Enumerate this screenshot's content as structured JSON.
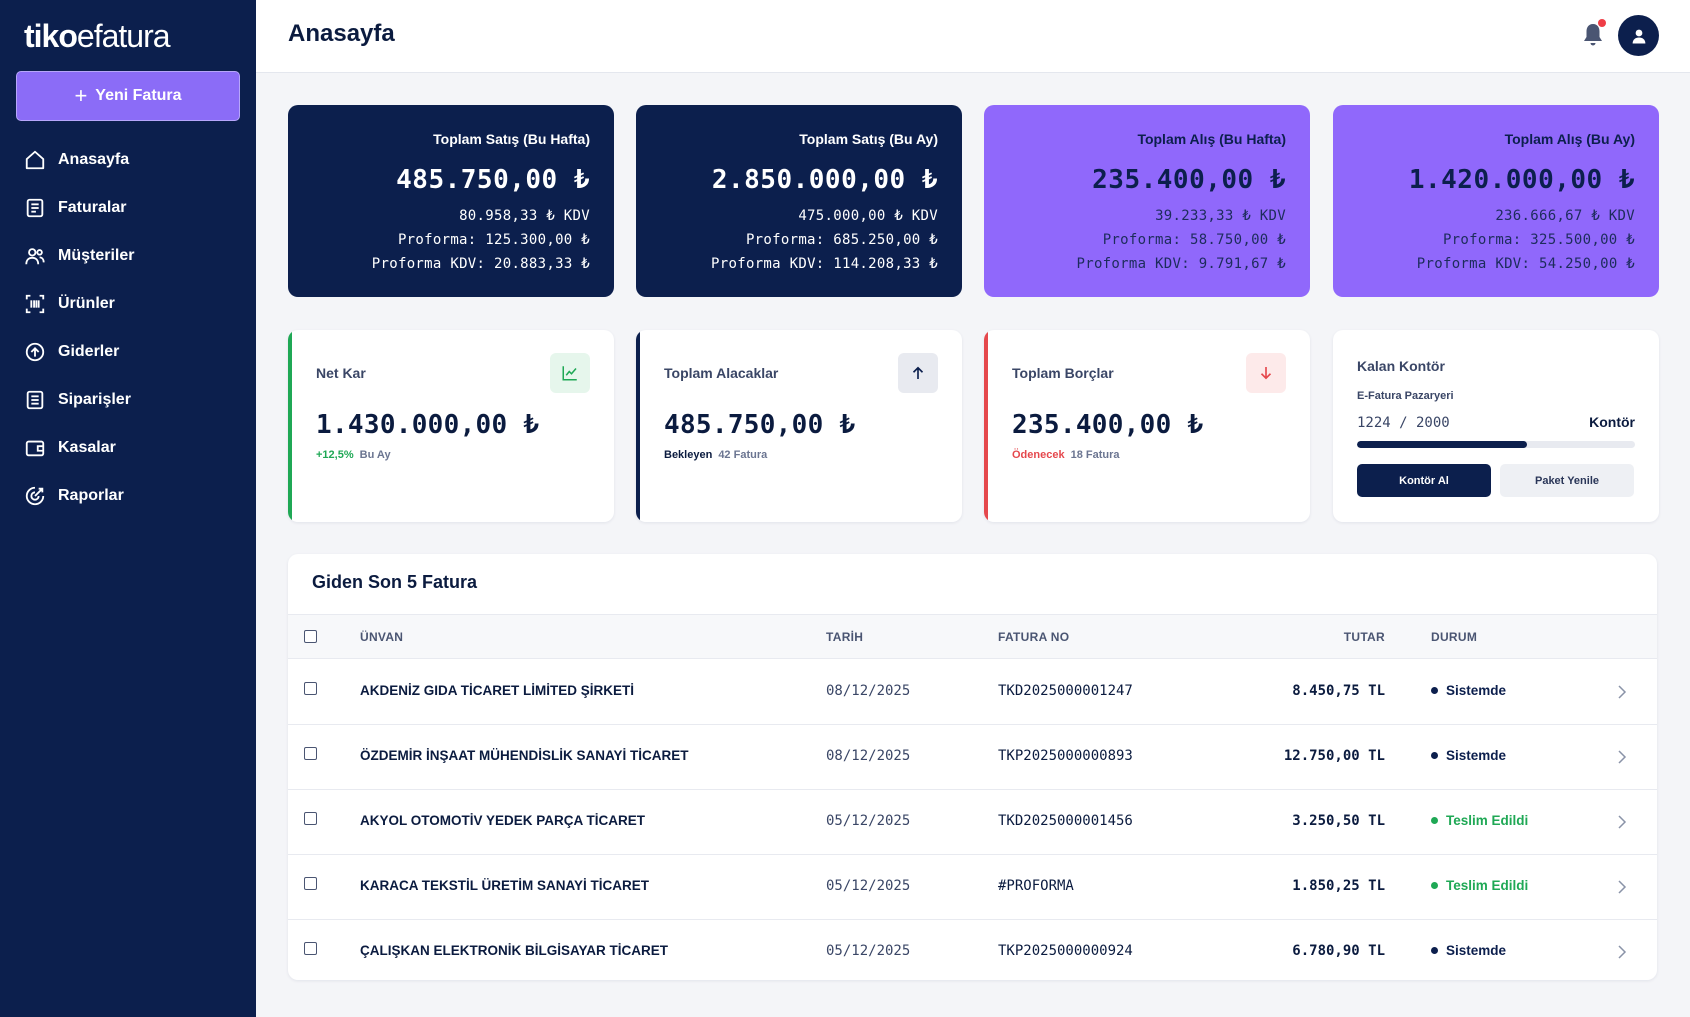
{
  "sidebar": {
    "logo_bold": "tiko",
    "logo_light": "efatura",
    "new_button": "Yeni Fatura",
    "items": [
      {
        "label": "Anasayfa",
        "icon": "home-icon"
      },
      {
        "label": "Faturalar",
        "icon": "invoice-icon"
      },
      {
        "label": "Müşteriler",
        "icon": "users-icon"
      },
      {
        "label": "Ürünler",
        "icon": "barcode-icon"
      },
      {
        "label": "Giderler",
        "icon": "upload-circle-icon"
      },
      {
        "label": "Siparişler",
        "icon": "list-icon"
      },
      {
        "label": "Kasalar",
        "icon": "wallet-icon"
      },
      {
        "label": "Raporlar",
        "icon": "report-icon"
      }
    ]
  },
  "header": {
    "title": "Anasayfa"
  },
  "stats": [
    {
      "title": "Toplam Satış (Bu Hafta)",
      "amount": "485.750,00 ₺",
      "kdv": "80.958,33 ₺ KDV",
      "proforma": "Proforma: 125.300,00 ₺",
      "proforma_kdv": "Proforma KDV: 20.883,33 ₺"
    },
    {
      "title": "Toplam Satış (Bu Ay)",
      "amount": "2.850.000,00 ₺",
      "kdv": "475.000,00 ₺ KDV",
      "proforma": "Proforma: 685.250,00 ₺",
      "proforma_kdv": "Proforma KDV: 114.208,33 ₺"
    },
    {
      "title": "Toplam Alış (Bu Hafta)",
      "amount": "235.400,00 ₺",
      "kdv": "39.233,33 ₺ KDV",
      "proforma": "Proforma: 58.750,00 ₺",
      "proforma_kdv": "Proforma KDV: 9.791,67 ₺"
    },
    {
      "title": "Toplam Alış (Bu Ay)",
      "amount": "1.420.000,00 ₺",
      "kdv": "236.666,67 ₺ KDV",
      "proforma": "Proforma: 325.500,00 ₺",
      "proforma_kdv": "Proforma KDV: 54.250,00 ₺"
    }
  ],
  "net_kar": {
    "label": "Net Kar",
    "value": "1.430.000,00 ₺",
    "change": "+12,5%",
    "period": "Bu Ay",
    "icon": "trend-chart-icon"
  },
  "alacaklar": {
    "label": "Toplam Alacaklar",
    "value": "485.750,00 ₺",
    "status": "Bekleyen",
    "count": "42 Fatura",
    "icon": "arrow-up-icon"
  },
  "borclar": {
    "label": "Toplam Borçlar",
    "value": "235.400,00 ₺",
    "status": "Ödenecek",
    "count": "18 Fatura",
    "icon": "arrow-down-icon"
  },
  "kontor": {
    "label": "Kalan Kontör",
    "source": "E-Fatura Pazaryeri",
    "usage": "1224 / 2000",
    "unit": "Kontör",
    "progress": 0.612,
    "buy_button": "Kontör Al",
    "renew_button": "Paket Yenile"
  },
  "table": {
    "title": "Giden Son 5 Fatura",
    "columns": {
      "name": "ÜNVAN",
      "date": "TARİH",
      "no": "FATURA NO",
      "amount": "TUTAR",
      "status": "DURUM"
    },
    "rows": [
      {
        "name": "AKDENİZ GIDA TİCARET LİMİTED ŞİRKETİ",
        "date": "08/12/2025",
        "no": "TKD2025000001247",
        "amount": "8.450,75 TL",
        "status": "Sistemde",
        "status_color": "#0c1f4d"
      },
      {
        "name": "ÖZDEMİR İNŞAAT MÜHENDİSLİK SANAYİ TİCARET",
        "date": "08/12/2025",
        "no": "TKP2025000000893",
        "amount": "12.750,00 TL",
        "status": "Sistemde",
        "status_color": "#0c1f4d"
      },
      {
        "name": "AKYOL OTOMOTİV YEDEK PARÇA TİCARET",
        "date": "05/12/2025",
        "no": "TKD2025000001456",
        "amount": "3.250,50 TL",
        "status": "Teslim Edildi",
        "status_color": "#1fa855"
      },
      {
        "name": "KARACA TEKSTİL ÜRETİM SANAYİ TİCARET",
        "date": "05/12/2025",
        "no": "#PROFORMA",
        "amount": "1.850,25 TL",
        "status": "Teslim Edildi",
        "status_color": "#1fa855"
      },
      {
        "name": "ÇALIŞKAN ELEKTRONİK BİLGİSAYAR TİCARET",
        "date": "05/12/2025",
        "no": "TKP2025000000924",
        "amount": "6.780,90 TL",
        "status": "Sistemde",
        "status_color": "#0c1f4d"
      }
    ]
  },
  "colors": {
    "navy": "#0c1f4d",
    "purple": "#9068fb",
    "green": "#1fa855",
    "red": "#e5484d"
  }
}
